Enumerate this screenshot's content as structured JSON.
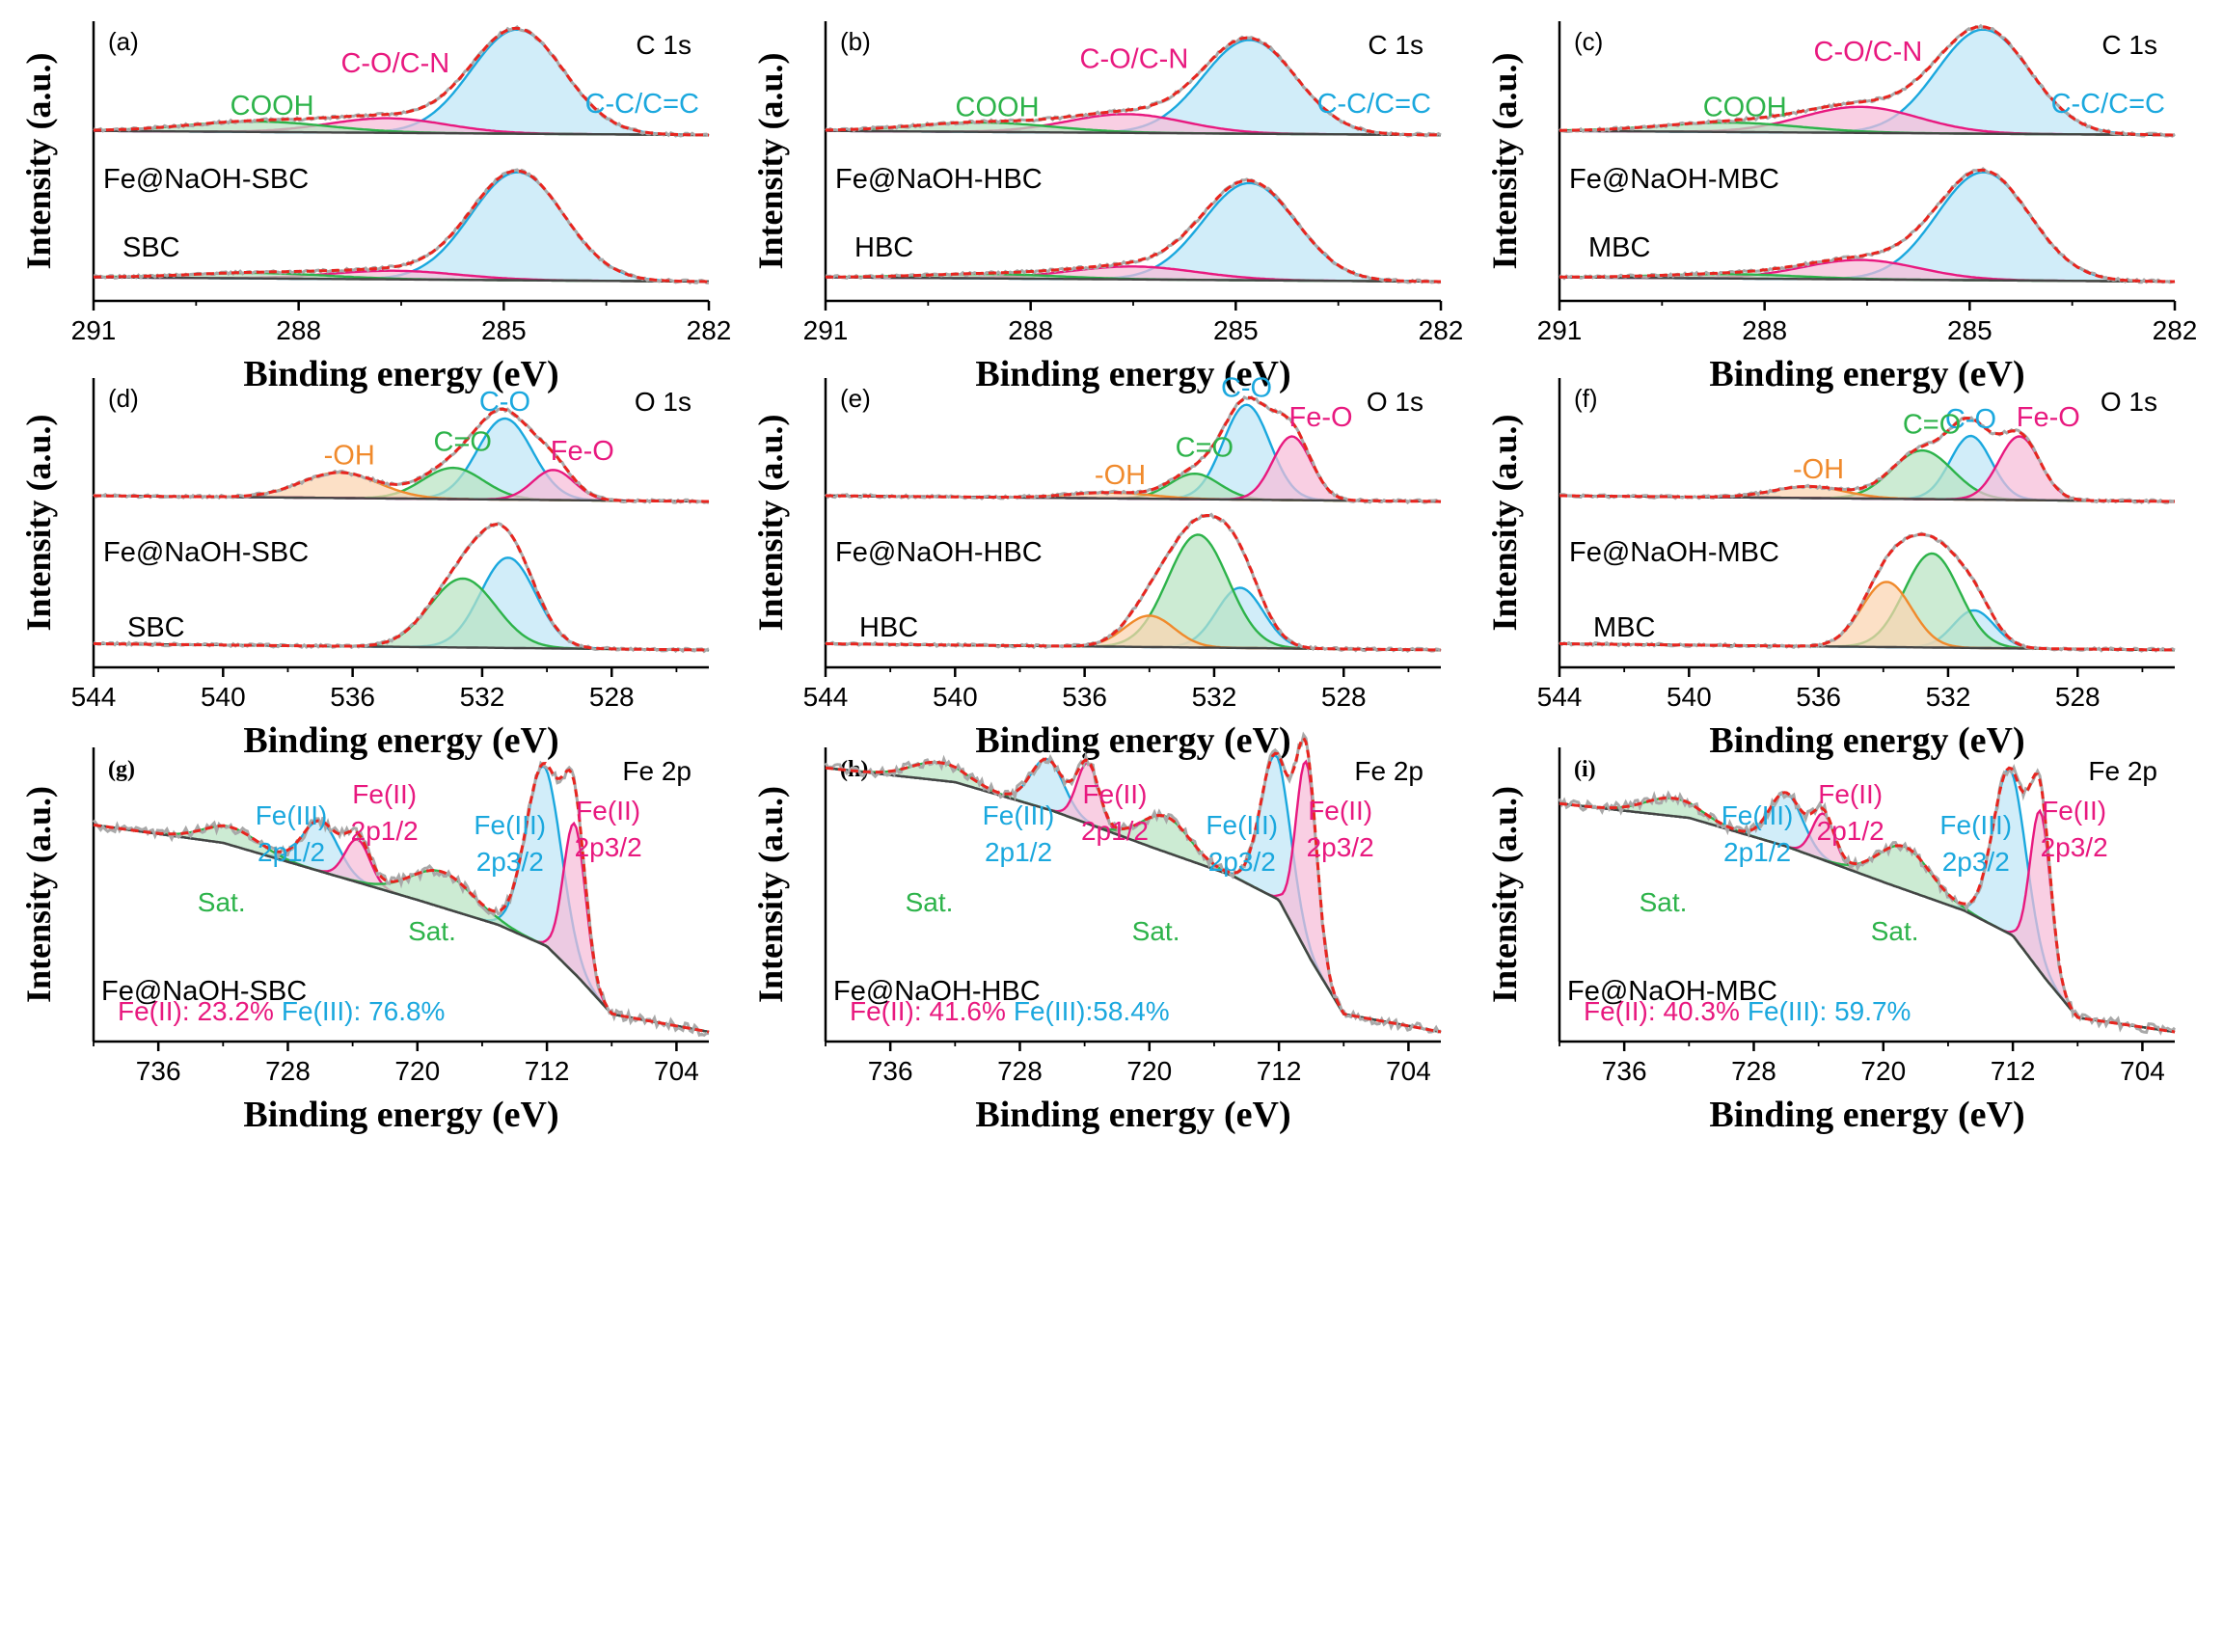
{
  "figure": {
    "background": "#ffffff"
  },
  "colors": {
    "cc": "#1ba8de",
    "ccFill": "#bfe6f7",
    "co": "#e8197f",
    "coFill": "#f7bcd8",
    "green": "#2db34a",
    "greenFill": "#b9e3c2",
    "orange": "#f08a2c",
    "orangeFill": "#fbd4b0",
    "fit": "#e8251f",
    "raw": "#a8a8a8",
    "baseline": "#444444",
    "axis": "#000000"
  },
  "chart_data": [
    {
      "panel": "a",
      "label": "(a)",
      "type": "line",
      "element": "C 1s",
      "xlabel": "Binding energy (eV)",
      "ylabel": "Intensity (a.u.)",
      "xlim": [
        291,
        282
      ],
      "x_ticks": [
        "291",
        "288",
        "285",
        "282"
      ],
      "upper": {
        "sample": "Fe@NaOH-SBC",
        "peaks": [
          {
            "label": "C-C/C=C",
            "center": 284.8,
            "height": 1.0,
            "fwhm": 1.6,
            "color": "cc"
          },
          {
            "label": "C-O/C-N",
            "center": 286.7,
            "height": 0.14,
            "fwhm": 2.0,
            "color": "co"
          },
          {
            "label": "COOH",
            "center": 288.6,
            "height": 0.1,
            "fwhm": 2.4,
            "color": "green"
          }
        ]
      },
      "lower": {
        "sample": "SBC",
        "peaks": [
          {
            "label": "C-C/C=C",
            "center": 284.8,
            "height": 1.0,
            "fwhm": 1.6,
            "color": "cc"
          },
          {
            "label": "C-O/C-N",
            "center": 286.6,
            "height": 0.08,
            "fwhm": 2.2,
            "color": "co"
          },
          {
            "label": "COOH",
            "center": 288.6,
            "height": 0.05,
            "fwhm": 2.4,
            "color": "green"
          }
        ]
      }
    },
    {
      "panel": "b",
      "label": "(b)",
      "type": "line",
      "element": "C 1s",
      "xlabel": "Binding energy (eV)",
      "ylabel": "Intensity (a.u.)",
      "xlim": [
        291,
        282
      ],
      "x_ticks": [
        "291",
        "288",
        "285",
        "282"
      ],
      "upper": {
        "sample": "Fe@NaOH-HBC",
        "peaks": [
          {
            "label": "C-C/C=C",
            "center": 284.8,
            "height": 0.9,
            "fwhm": 1.6,
            "color": "cc"
          },
          {
            "label": "C-O/C-N",
            "center": 286.6,
            "height": 0.18,
            "fwhm": 2.0,
            "color": "co"
          },
          {
            "label": "COOH",
            "center": 288.7,
            "height": 0.09,
            "fwhm": 2.4,
            "color": "green"
          }
        ]
      },
      "lower": {
        "sample": "HBC",
        "peaks": [
          {
            "label": "C-C/C=C",
            "center": 284.8,
            "height": 0.9,
            "fwhm": 1.6,
            "color": "cc"
          },
          {
            "label": "C-O/C-N",
            "center": 286.5,
            "height": 0.12,
            "fwhm": 2.2,
            "color": "co"
          },
          {
            "label": "COOH",
            "center": 288.6,
            "height": 0.04,
            "fwhm": 2.4,
            "color": "green"
          }
        ]
      }
    },
    {
      "panel": "c",
      "label": "(c)",
      "type": "line",
      "element": "C 1s",
      "xlabel": "Binding energy (eV)",
      "ylabel": "Intensity (a.u.)",
      "xlim": [
        291,
        282
      ],
      "x_ticks": [
        "291",
        "288",
        "285",
        "282"
      ],
      "upper": {
        "sample": "Fe@NaOH-MBC",
        "peaks": [
          {
            "label": "C-C/C=C",
            "center": 284.8,
            "height": 1.0,
            "fwhm": 1.6,
            "color": "cc"
          },
          {
            "label": "C-O/C-N",
            "center": 286.6,
            "height": 0.25,
            "fwhm": 2.0,
            "color": "co"
          },
          {
            "label": "COOH",
            "center": 288.5,
            "height": 0.09,
            "fwhm": 2.4,
            "color": "green"
          }
        ]
      },
      "lower": {
        "sample": "MBC",
        "peaks": [
          {
            "label": "C-C/C=C",
            "center": 284.8,
            "height": 1.0,
            "fwhm": 1.6,
            "color": "cc"
          },
          {
            "label": "C-O/C-N",
            "center": 286.6,
            "height": 0.18,
            "fwhm": 2.0,
            "color": "co"
          },
          {
            "label": "COOH",
            "center": 288.5,
            "height": 0.04,
            "fwhm": 2.4,
            "color": "green"
          }
        ]
      }
    },
    {
      "panel": "d",
      "label": "(d)",
      "type": "line",
      "element": "O 1s",
      "xlabel": "Binding energy (eV)",
      "ylabel": "Intensity (a.u.)",
      "xlim": [
        544,
        525
      ],
      "x_ticks": [
        "544",
        "540",
        "536",
        "532",
        "528"
      ],
      "upper": {
        "sample": "Fe@NaOH-SBC",
        "peaks": [
          {
            "label": "C-O",
            "center": 531.3,
            "height": 0.7,
            "fwhm": 2.0,
            "color": "cc"
          },
          {
            "label": "C=O",
            "center": 532.9,
            "height": 0.27,
            "fwhm": 2.2,
            "color": "green"
          },
          {
            "label": "-OH",
            "center": 536.4,
            "height": 0.22,
            "fwhm": 2.8,
            "color": "orange"
          },
          {
            "label": "Fe-O",
            "center": 529.8,
            "height": 0.26,
            "fwhm": 1.5,
            "color": "co"
          }
        ]
      },
      "lower": {
        "sample": "SBC",
        "peaks": [
          {
            "label": "C-O",
            "center": 531.2,
            "height": 0.72,
            "fwhm": 2.0,
            "color": "cc"
          },
          {
            "label": "C=O",
            "center": 532.6,
            "height": 0.55,
            "fwhm": 2.4,
            "color": "green"
          }
        ]
      }
    },
    {
      "panel": "e",
      "label": "(e)",
      "type": "line",
      "element": "O 1s",
      "xlabel": "Binding energy (eV)",
      "ylabel": "Intensity (a.u.)",
      "xlim": [
        544,
        525
      ],
      "x_ticks": [
        "544",
        "540",
        "536",
        "532",
        "528"
      ],
      "upper": {
        "sample": "Fe@NaOH-HBC",
        "peaks": [
          {
            "label": "C-O",
            "center": 531.0,
            "height": 0.82,
            "fwhm": 1.7,
            "color": "cc"
          },
          {
            "label": "C=O",
            "center": 532.6,
            "height": 0.22,
            "fwhm": 1.8,
            "color": "green"
          },
          {
            "label": "-OH",
            "center": 535.2,
            "height": 0.05,
            "fwhm": 3.0,
            "color": "orange"
          },
          {
            "label": "Fe-O",
            "center": 529.6,
            "height": 0.55,
            "fwhm": 1.4,
            "color": "co"
          }
        ]
      },
      "lower": {
        "sample": "HBC",
        "peaks": [
          {
            "label": "C-O",
            "center": 531.2,
            "height": 0.48,
            "fwhm": 1.7,
            "color": "cc"
          },
          {
            "label": "C=O",
            "center": 532.5,
            "height": 0.9,
            "fwhm": 2.2,
            "color": "green"
          },
          {
            "label": "-OH",
            "center": 534.0,
            "height": 0.25,
            "fwhm": 1.8,
            "color": "orange"
          }
        ]
      }
    },
    {
      "panel": "f",
      "label": "(f)",
      "type": "line",
      "element": "O 1s",
      "xlabel": "Binding energy (eV)",
      "ylabel": "Intensity (a.u.)",
      "xlim": [
        544,
        525
      ],
      "x_ticks": [
        "544",
        "540",
        "536",
        "532",
        "528"
      ],
      "upper": {
        "sample": "Fe@NaOH-MBC",
        "peaks": [
          {
            "label": "C-O",
            "center": 531.3,
            "height": 0.55,
            "fwhm": 1.5,
            "color": "cc"
          },
          {
            "label": "C=O",
            "center": 532.8,
            "height": 0.42,
            "fwhm": 2.2,
            "color": "green"
          },
          {
            "label": "-OH",
            "center": 536.3,
            "height": 0.1,
            "fwhm": 2.6,
            "color": "orange"
          },
          {
            "label": "Fe-O",
            "center": 529.8,
            "height": 0.55,
            "fwhm": 1.5,
            "color": "co"
          }
        ]
      },
      "lower": {
        "sample": "MBC",
        "peaks": [
          {
            "label": "C-O",
            "center": 531.2,
            "height": 0.3,
            "fwhm": 1.5,
            "color": "cc"
          },
          {
            "label": "C=O",
            "center": 532.5,
            "height": 0.75,
            "fwhm": 2.0,
            "color": "green"
          },
          {
            "label": "-OH",
            "center": 533.9,
            "height": 0.52,
            "fwhm": 1.8,
            "color": "orange"
          }
        ]
      }
    },
    {
      "panel": "g",
      "label": "(g)",
      "type": "line",
      "element": "Fe 2p",
      "sample": "Fe@NaOH-SBC",
      "xlabel": "Binding energy (eV)",
      "ylabel": "Intensity (a.u.)",
      "xlim": [
        740,
        702
      ],
      "x_ticks": [
        "736",
        "728",
        "720",
        "712",
        "704"
      ],
      "ratio": {
        "fe2_text": "Fe(II): 23.2%",
        "fe3_text": "Fe(III): 76.8%"
      },
      "annotations": [
        "Sat.",
        "Fe(III)",
        "2p1/2",
        "Fe(II)",
        "2p1/2",
        "Sat.",
        "Fe(III)",
        "2p3/2",
        "Fe(II)",
        "2p3/2"
      ],
      "baseline": [
        [
          740,
          0.58
        ],
        [
          732,
          0.53
        ],
        [
          726,
          0.45
        ],
        [
          720,
          0.37
        ],
        [
          715,
          0.3
        ],
        [
          712,
          0.24
        ],
        [
          710,
          0.15
        ],
        [
          708,
          0.05
        ],
        [
          702,
          0.0
        ]
      ],
      "peaks": [
        {
          "label": "Fe(III) 2p3/2",
          "center": 712.2,
          "height": 0.5,
          "fwhm": 2.6,
          "color": "cc"
        },
        {
          "label": "Fe(II) 2p3/2",
          "center": 710.3,
          "height": 0.42,
          "fwhm": 1.6,
          "color": "co"
        },
        {
          "label": "Fe(III) 2p1/2",
          "center": 726.0,
          "height": 0.14,
          "fwhm": 2.6,
          "color": "cc"
        },
        {
          "label": "Fe(II) 2p1/2",
          "center": 723.7,
          "height": 0.12,
          "fwhm": 1.8,
          "color": "co"
        },
        {
          "label": "Sat. 2p3/2",
          "center": 718.5,
          "height": 0.1,
          "fwhm": 4.5,
          "color": "green"
        },
        {
          "label": "Sat. 2p1/2",
          "center": 731.5,
          "height": 0.05,
          "fwhm": 4.0,
          "color": "green"
        }
      ]
    },
    {
      "panel": "h",
      "label": "(h)",
      "type": "line",
      "element": "Fe 2p",
      "sample": "Fe@NaOH-HBC",
      "xlabel": "Binding energy (eV)",
      "ylabel": "Intensity (a.u.)",
      "xlim": [
        740,
        702
      ],
      "x_ticks": [
        "736",
        "728",
        "720",
        "712",
        "704"
      ],
      "ratio": {
        "fe2_text": "Fe(II): 41.6%",
        "fe3_text": "Fe(III):58.4%"
      },
      "annotations": [
        "Sat.",
        "Fe(III)",
        "2p1/2",
        "Fe(II)",
        "2p1/2",
        "Sat.",
        "Fe(III)",
        "2p3/2",
        "Fe(II)",
        "2p3/2"
      ],
      "baseline": [
        [
          740,
          0.74
        ],
        [
          732,
          0.7
        ],
        [
          726,
          0.62
        ],
        [
          720,
          0.52
        ],
        [
          715,
          0.44
        ],
        [
          712,
          0.37
        ],
        [
          710,
          0.2
        ],
        [
          708,
          0.05
        ],
        [
          702,
          0.0
        ]
      ],
      "peaks": [
        {
          "label": "Fe(III) 2p3/2",
          "center": 712.2,
          "height": 0.4,
          "fwhm": 2.2,
          "color": "cc"
        },
        {
          "label": "Fe(II) 2p3/2",
          "center": 710.3,
          "height": 0.53,
          "fwhm": 1.5,
          "color": "co"
        },
        {
          "label": "Fe(III) 2p1/2",
          "center": 726.3,
          "height": 0.14,
          "fwhm": 2.4,
          "color": "cc"
        },
        {
          "label": "Fe(II) 2p1/2",
          "center": 723.8,
          "height": 0.17,
          "fwhm": 1.6,
          "color": "co"
        },
        {
          "label": "Sat. 2p3/2",
          "center": 719.0,
          "height": 0.1,
          "fwhm": 3.5,
          "color": "green"
        },
        {
          "label": "Sat. 2p1/2",
          "center": 733.0,
          "height": 0.05,
          "fwhm": 4.0,
          "color": "green"
        }
      ]
    },
    {
      "panel": "i",
      "label": "(i)",
      "type": "line",
      "element": "Fe 2p",
      "sample": "Fe@NaOH-MBC",
      "xlabel": "Binding energy (eV)",
      "ylabel": "Intensity (a.u.)",
      "xlim": [
        740,
        702
      ],
      "x_ticks": [
        "736",
        "728",
        "720",
        "712",
        "704"
      ],
      "ratio": {
        "fe2_text": "Fe(II): 40.3%",
        "fe3_text": "Fe(III): 59.7%"
      },
      "annotations": [
        "Sat.",
        "Fe(III)",
        "2p1/2",
        "Fe(II)",
        "2p1/2",
        "Sat.",
        "Fe(III)",
        "2p3/2",
        "Fe(II)",
        "2p3/2"
      ],
      "baseline": [
        [
          740,
          0.64
        ],
        [
          732,
          0.6
        ],
        [
          726,
          0.52
        ],
        [
          720,
          0.42
        ],
        [
          715,
          0.34
        ],
        [
          712,
          0.27
        ],
        [
          710,
          0.15
        ],
        [
          708,
          0.04
        ],
        [
          702,
          0.0
        ]
      ],
      "peaks": [
        {
          "label": "Fe(III) 2p3/2",
          "center": 712.2,
          "height": 0.46,
          "fwhm": 2.4,
          "color": "cc"
        },
        {
          "label": "Fe(II) 2p3/2",
          "center": 710.3,
          "height": 0.45,
          "fwhm": 1.5,
          "color": "co"
        },
        {
          "label": "Fe(III) 2p1/2",
          "center": 726.0,
          "height": 0.15,
          "fwhm": 2.4,
          "color": "cc"
        },
        {
          "label": "Fe(II) 2p1/2",
          "center": 723.7,
          "height": 0.13,
          "fwhm": 1.6,
          "color": "co"
        },
        {
          "label": "Sat. 2p3/2",
          "center": 718.7,
          "height": 0.12,
          "fwhm": 3.8,
          "color": "green"
        },
        {
          "label": "Sat. 2p1/2",
          "center": 733.0,
          "height": 0.05,
          "fwhm": 4.0,
          "color": "green"
        }
      ]
    }
  ]
}
